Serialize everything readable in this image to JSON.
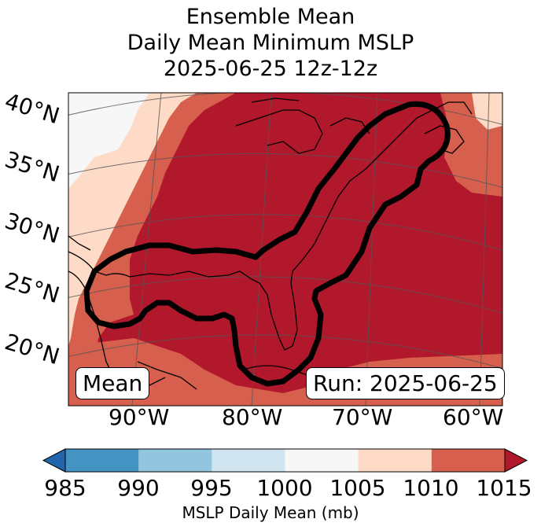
{
  "title": {
    "line1": "Ensemble Mean",
    "line2": "Daily Mean Minimum MSLP",
    "line3": "2025-06-25 12z-12z"
  },
  "map": {
    "lat_labels": [
      "40°N",
      "35°N",
      "30°N",
      "25°N",
      "20°N"
    ],
    "lon_labels": [
      "90°W",
      "80°W",
      "70°W",
      "60°W"
    ],
    "mean_box": "Mean",
    "run_box": "Run: 2025-06-25"
  },
  "colorbar": {
    "ticks": [
      "985",
      "990",
      "995",
      "1000",
      "1005",
      "1010",
      "1015"
    ],
    "label": "MSLP Daily Mean (mb)",
    "colors": [
      "#2166ac",
      "#4393c3",
      "#92c5de",
      "#d1e5f0",
      "#f7f7f7",
      "#fddbc7",
      "#d6604d",
      "#b2182b"
    ]
  }
}
